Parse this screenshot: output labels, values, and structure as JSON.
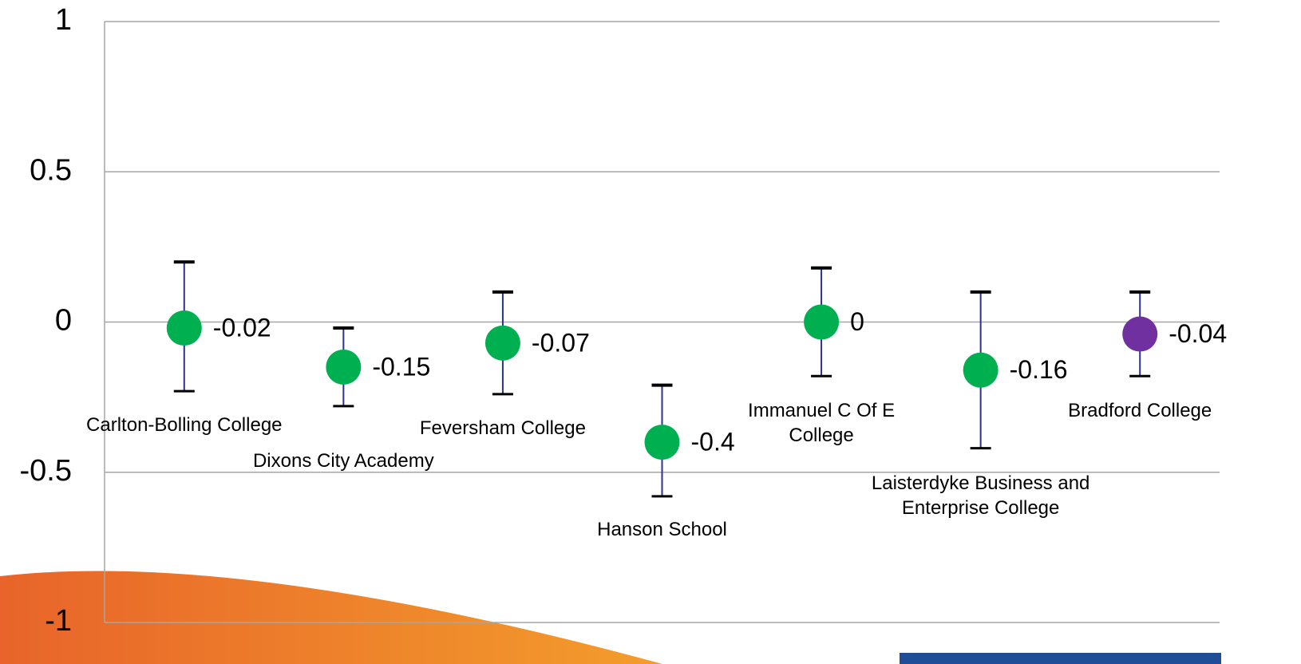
{
  "chart_data": {
    "type": "errorbar",
    "categories": [
      "Carlton-Bolling College",
      "Dixons City Academy",
      "Feversham College",
      "Hanson School",
      "Immanuel C Of E College",
      "Laisterdyke Business and Enterprise College",
      "Bradford College"
    ],
    "values": [
      -0.02,
      -0.15,
      -0.07,
      -0.4,
      0,
      -0.16,
      -0.04
    ],
    "upper": [
      0.2,
      -0.02,
      0.1,
      -0.21,
      0.18,
      0.1,
      0.1
    ],
    "lower": [
      -0.23,
      -0.28,
      -0.24,
      -0.58,
      -0.18,
      -0.42,
      -0.18
    ],
    "colors": [
      "#00b050",
      "#00b050",
      "#00b050",
      "#00b050",
      "#00b050",
      "#00b050",
      "#7030a0"
    ],
    "error_bar_color": "#2e3192",
    "cap_color": "#000000",
    "ylim": [
      -1,
      1
    ],
    "yticks": [
      -1,
      -0.5,
      0,
      0.5,
      1
    ],
    "grid": true
  }
}
